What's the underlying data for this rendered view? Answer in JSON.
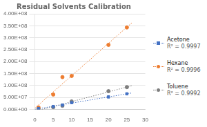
{
  "chart_data": {
    "type": "scatter",
    "title": "Residual Solvents Calibration",
    "xlim": [
      0,
      30
    ],
    "xticks": [
      0,
      5,
      10,
      15,
      20,
      25,
      30
    ],
    "ylim": [
      0,
      400000000
    ],
    "yticks": [
      {
        "value": 0,
        "label": "0.00E+00"
      },
      {
        "value": 50000000,
        "label": "5.00E+07"
      },
      {
        "value": 100000000,
        "label": "1.00E+08"
      },
      {
        "value": 150000000,
        "label": "1.50E+08"
      },
      {
        "value": 200000000,
        "label": "2.00E+08"
      },
      {
        "value": 250000000,
        "label": "2.50E+08"
      },
      {
        "value": 300000000,
        "label": "3.00E+08"
      },
      {
        "value": 350000000,
        "label": "3.50E+08"
      },
      {
        "value": 400000000,
        "label": "4.00E+08"
      }
    ],
    "grid": "y",
    "legend": "right",
    "series": [
      {
        "name": "Acetone",
        "color": "#4472c4",
        "marker": "square",
        "x": [
          1,
          5,
          7.5,
          10,
          20,
          25
        ],
        "values": [
          3500000,
          12000000,
          18000000,
          28000000,
          52000000,
          65000000
        ],
        "r2": 0.9997,
        "r2_label": "R² = 0.9997",
        "trendline": {
          "line_style": "dotted",
          "x": [
            0,
            26.5
          ],
          "values": [
            64429,
            68969623
          ]
        }
      },
      {
        "name": "Hexane",
        "color": "#ed7d31",
        "marker": "circle",
        "x": [
          1,
          5,
          7.5,
          10,
          20,
          25
        ],
        "values": [
          8000000,
          62000000,
          135000000,
          140000000,
          270000000,
          343000000
        ],
        "r2": 0.9996,
        "r2_label": "R² = 0.9996",
        "trendline": {
          "line_style": "dotted",
          "x": [
            0,
            26.5
          ],
          "values": [
            4789313,
            364285637
          ]
        }
      },
      {
        "name": "Toluene",
        "color": "#7f7f7f",
        "marker": "circle",
        "x": [
          1,
          5,
          7.5,
          10,
          20,
          25
        ],
        "values": [
          2000000,
          9000000,
          15000000,
          33000000,
          76000000,
          93000000
        ],
        "r2": 0.9992,
        "r2_label": "R² = 0.9992",
        "trendline": {
          "line_style": "dotted",
          "x": [
            0,
            26.5
          ],
          "values": [
            -8490053,
            99421164
          ]
        }
      }
    ]
  }
}
